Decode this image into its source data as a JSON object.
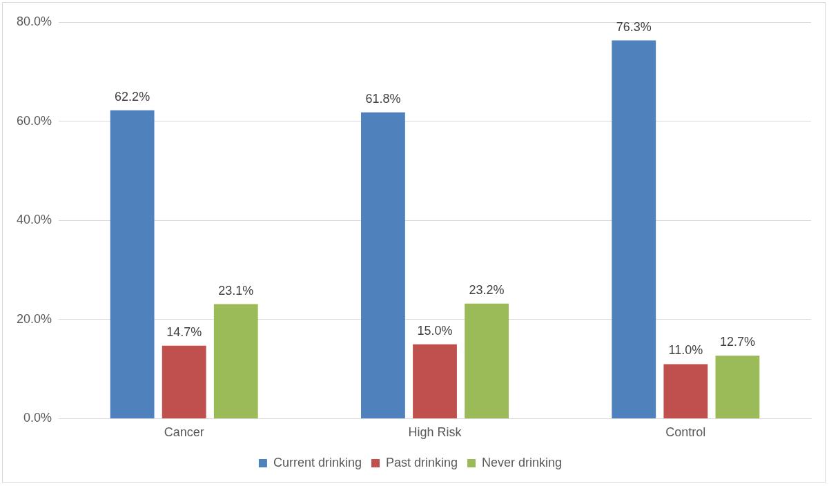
{
  "chart_data": {
    "type": "bar",
    "categories": [
      "Cancer",
      "High Risk",
      "Control"
    ],
    "series": [
      {
        "name": "Current drinking",
        "color": "#4f81bd",
        "values": [
          62.2,
          61.8,
          76.3
        ],
        "value_labels": [
          "62.2%",
          "61.8%",
          "76.3%"
        ]
      },
      {
        "name": "Past drinking",
        "color": "#c0504d",
        "values": [
          14.7,
          15.0,
          11.0
        ],
        "value_labels": [
          "14.7%",
          "15.0%",
          "11.0%"
        ]
      },
      {
        "name": "Never drinking",
        "color": "#9bbb59",
        "values": [
          23.1,
          23.2,
          12.7
        ],
        "value_labels": [
          "23.1%",
          "23.2%",
          "12.7%"
        ]
      }
    ],
    "ylim": [
      0,
      80
    ],
    "yticks": [
      {
        "value": 0,
        "label": "0.0%"
      },
      {
        "value": 20,
        "label": "20.0%"
      },
      {
        "value": 40,
        "label": "40.0%"
      },
      {
        "value": 60,
        "label": "60.0%"
      },
      {
        "value": 80,
        "label": "80.0%"
      }
    ],
    "grid": "y",
    "legend": "bottom"
  }
}
